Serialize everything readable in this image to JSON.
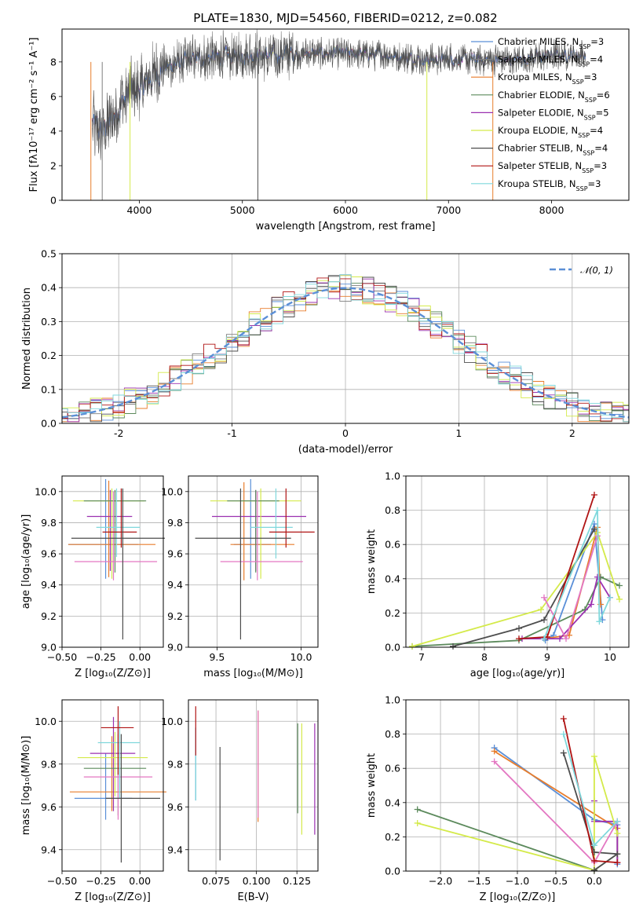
{
  "figure_title": "PLATE=1830, MJD=54560, FIBERID=0212, z=0.082",
  "chart_data": [
    {
      "id": "spectrum",
      "type": "line",
      "xlabel": "wavelength [Angstrom, rest frame]",
      "ylabel": "Flux [fλ10⁻¹⁷ erg cm⁻² s⁻¹ A⁻¹]",
      "xlim": [
        3250,
        8750
      ],
      "ylim": [
        0,
        9.9
      ],
      "xticks": [
        4000,
        5000,
        6000,
        7000,
        8000
      ],
      "yticks": [
        0,
        2,
        4,
        6,
        8
      ],
      "grid": false,
      "legend_position": "right",
      "series": [
        {
          "name": "Chabrier MILES, N_SSP=3",
          "color": "#5a8fd8"
        },
        {
          "name": "Salpeter MILES, N_SSP=4",
          "color": "#7f7f7f"
        },
        {
          "name": "Kroupa MILES, N_SSP=3",
          "color": "#e87d2c"
        },
        {
          "name": "Chabrier ELODIE, N_SSP=6",
          "color": "#5c8a5c"
        },
        {
          "name": "Salpeter ELODIE, N_SSP=5",
          "color": "#9b30b0"
        },
        {
          "name": "Kroupa ELODIE, N_SSP=4",
          "color": "#d4ea4a"
        },
        {
          "name": "Chabrier STELIB, N_SSP=4",
          "color": "#4d4d4d"
        },
        {
          "name": "Salpeter STELIB, N_SSP=3",
          "color": "#b01414"
        },
        {
          "name": "Kroupa STELIB, N_SSP=3",
          "color": "#7fd8dc"
        }
      ],
      "continuum_points": [
        {
          "x": 3550,
          "y": 4.3
        },
        {
          "x": 3620,
          "y": 4.0
        },
        {
          "x": 3700,
          "y": 4.4
        },
        {
          "x": 3800,
          "y": 5.3
        },
        {
          "x": 3900,
          "y": 6.3
        },
        {
          "x": 4000,
          "y": 6.4
        },
        {
          "x": 4100,
          "y": 7.0
        },
        {
          "x": 4200,
          "y": 7.6
        },
        {
          "x": 4400,
          "y": 8.0
        },
        {
          "x": 4600,
          "y": 8.2
        },
        {
          "x": 4800,
          "y": 8.3
        },
        {
          "x": 5000,
          "y": 8.4
        },
        {
          "x": 5300,
          "y": 8.4
        },
        {
          "x": 5600,
          "y": 8.5
        },
        {
          "x": 6000,
          "y": 8.5
        },
        {
          "x": 6400,
          "y": 8.4
        },
        {
          "x": 6800,
          "y": 8.1
        },
        {
          "x": 7000,
          "y": 8.2
        },
        {
          "x": 7300,
          "y": 8.1
        },
        {
          "x": 7600,
          "y": 8.1
        },
        {
          "x": 7800,
          "y": 8.2
        },
        {
          "x": 8000,
          "y": 8.4
        },
        {
          "x": 8300,
          "y": 8.4
        }
      ]
    },
    {
      "id": "residuals",
      "type": "line",
      "xlabel": "(data-model)/error",
      "ylabel": "Normed distribution",
      "xlim": [
        -2.5,
        2.5
      ],
      "ylim": [
        0,
        0.5
      ],
      "xticks": [
        -2,
        -1,
        0,
        1,
        2
      ],
      "ytick_labels": [
        "0.0",
        "0.1",
        "0.2",
        "0.3",
        "0.4",
        "0.5"
      ],
      "grid": true,
      "legend_position": "top-right",
      "legend_label": "𝒩(0, 1)",
      "gaussian_color": "#5b8fd6"
    },
    {
      "id": "age_vs_Z",
      "type": "scatter",
      "xlabel": "Z [log₁₀(Z/Z⊙)]",
      "ylabel": "age  [log₁₀(age/yr)]",
      "xlim": [
        -0.5,
        0.15
      ],
      "ylim": [
        9.0,
        10.1
      ],
      "xtick_labels": [
        "−0.50",
        "−0.25",
        "0.00"
      ],
      "ytick_labels": [
        "9.0",
        "9.2",
        "9.4",
        "9.6",
        "9.8",
        "10.0"
      ],
      "grid": true,
      "points": [
        {
          "x": -0.22,
          "xerr": [
            0.24,
            0.21
          ],
          "y": 9.66,
          "yerr": [
            0.22,
            0.42
          ],
          "color": "#5a8fd8"
        },
        {
          "x": -0.2,
          "xerr": [
            0.26,
            0.3
          ],
          "y": 9.66,
          "yerr": [
            0.21,
            0.41
          ],
          "color": "#e87d2c"
        },
        {
          "x": -0.19,
          "xerr": [
            0.15,
            0.14
          ],
          "y": 9.84,
          "yerr": [
            0.35,
            0.17
          ],
          "color": "#9b30b0"
        },
        {
          "x": -0.18,
          "xerr": [
            0.25,
            0.21
          ],
          "y": 9.94,
          "yerr": [
            0.5,
            0.08
          ],
          "color": "#d4ea4a"
        },
        {
          "x": -0.16,
          "xerr": [
            0.2,
            0.2
          ],
          "y": 9.94,
          "yerr": [
            0.46,
            0.07
          ],
          "color": "#5c8a5c"
        },
        {
          "x": -0.17,
          "xerr": [
            0.25,
            0.28
          ],
          "y": 9.55,
          "yerr": [
            0.12,
            0.45
          ],
          "color": "#e377c2"
        },
        {
          "x": -0.15,
          "xerr": [
            0.13,
            0.15
          ],
          "y": 9.77,
          "yerr": [
            0.19,
            0.25
          ],
          "color": "#7fd8dc"
        },
        {
          "x": -0.12,
          "xerr": [
            0.12,
            0.1
          ],
          "y": 9.74,
          "yerr": [
            0.1,
            0.28
          ],
          "color": "#b01414"
        },
        {
          "x": -0.11,
          "xerr": [
            0.33,
            0.27
          ],
          "y": 9.7,
          "yerr": [
            0.65,
            0.32
          ],
          "color": "#4d4d4d"
        }
      ]
    },
    {
      "id": "age_vs_mass",
      "type": "scatter",
      "xlabel": "mass [log₁₀(M/M⊙)]",
      "xlim": [
        9.33,
        10.1
      ],
      "ylim": [
        9.0,
        10.1
      ],
      "xtick_labels": [
        "9.5",
        "10.0"
      ],
      "ytick_labels": [
        "9.0",
        "9.2",
        "9.4",
        "9.6",
        "9.8",
        "10.0"
      ],
      "grid": true,
      "points": [
        {
          "x": 9.7,
          "xerr": [
            0.1,
            0.12
          ],
          "y": 9.66,
          "yerr": [
            0.22,
            0.42
          ],
          "color": "#5a8fd8"
        },
        {
          "x": 9.66,
          "xerr": [
            0.08,
            0.3
          ],
          "y": 9.66,
          "yerr": [
            0.23,
            0.4
          ],
          "color": "#e87d2c"
        },
        {
          "x": 9.73,
          "xerr": [
            0.26,
            0.3
          ],
          "y": 9.84,
          "yerr": [
            0.35,
            0.17
          ],
          "color": "#9b30b0"
        },
        {
          "x": 9.76,
          "xerr": [
            0.3,
            0.24
          ],
          "y": 9.94,
          "yerr": [
            0.5,
            0.08
          ],
          "color": "#d4ea4a"
        },
        {
          "x": 9.73,
          "xerr": [
            0.17,
            0.14
          ],
          "y": 9.94,
          "yerr": [
            0.46,
            0.07
          ],
          "color": "#5c8a5c"
        },
        {
          "x": 9.74,
          "xerr": [
            0.22,
            0.27
          ],
          "y": 9.55,
          "yerr": [
            0.12,
            0.45
          ],
          "color": "#e377c2"
        },
        {
          "x": 9.85,
          "xerr": [
            0.15,
            0.1
          ],
          "y": 9.77,
          "yerr": [
            0.2,
            0.25
          ],
          "color": "#7fd8dc"
        },
        {
          "x": 9.91,
          "xerr": [
            0.1,
            0.17
          ],
          "y": 9.74,
          "yerr": [
            0.1,
            0.28
          ],
          "color": "#b01414"
        },
        {
          "x": 9.64,
          "xerr": [
            0.27,
            0.3
          ],
          "y": 9.7,
          "yerr": [
            0.65,
            0.32
          ],
          "color": "#4d4d4d"
        }
      ]
    },
    {
      "id": "weight_vs_age",
      "type": "line",
      "xlabel": "age  [log₁₀(age/yr)]",
      "ylabel": "mass weight",
      "xlim": [
        6.75,
        10.3
      ],
      "ylim": [
        0,
        1.0
      ],
      "xticks": [
        7,
        8,
        9,
        10
      ],
      "ytick_labels": [
        "0.0",
        "0.2",
        "0.4",
        "0.6",
        "0.8",
        "1.0"
      ],
      "grid": true,
      "series": [
        {
          "color": "#5a8fd8",
          "points": [
            [
              8.97,
              0.04
            ],
            [
              9.1,
              0.07
            ],
            [
              9.75,
              0.72
            ],
            [
              9.88,
              0.16
            ]
          ]
        },
        {
          "color": "#e87d2c",
          "points": [
            [
              8.95,
              0.05
            ],
            [
              9.35,
              0.07
            ],
            [
              9.8,
              0.7
            ],
            [
              9.85,
              0.25
            ]
          ]
        },
        {
          "color": "#5c8a5c",
          "points": [
            [
              6.85,
              0.005
            ],
            [
              8.55,
              0.04
            ],
            [
              9.6,
              0.22
            ],
            [
              9.85,
              0.41
            ],
            [
              10.15,
              0.36
            ]
          ]
        },
        {
          "color": "#9b30b0",
          "points": [
            [
              8.6,
              0.05
            ],
            [
              9.2,
              0.05
            ],
            [
              9.7,
              0.25
            ],
            [
              9.8,
              0.41
            ],
            [
              10.0,
              0.29
            ]
          ]
        },
        {
          "color": "#d4ea4a",
          "points": [
            [
              6.85,
              0.005
            ],
            [
              8.9,
              0.22
            ],
            [
              9.8,
              0.67
            ],
            [
              10.15,
              0.28
            ]
          ]
        },
        {
          "color": "#4d4d4d",
          "points": [
            [
              7.5,
              0.005
            ],
            [
              8.55,
              0.11
            ],
            [
              8.95,
              0.16
            ],
            [
              9.75,
              0.69
            ]
          ]
        },
        {
          "color": "#e377c2",
          "points": [
            [
              8.95,
              0.29
            ],
            [
              9.3,
              0.05
            ],
            [
              9.8,
              0.65
            ]
          ]
        },
        {
          "color": "#b01414",
          "points": [
            [
              8.55,
              0.05
            ],
            [
              9.0,
              0.06
            ],
            [
              9.75,
              0.89
            ]
          ]
        },
        {
          "color": "#7fd8dc",
          "points": [
            [
              8.95,
              0.05
            ],
            [
              9.8,
              0.8
            ],
            [
              9.83,
              0.15
            ],
            [
              10.0,
              0.29
            ]
          ]
        }
      ]
    },
    {
      "id": "mass_vs_Z",
      "type": "scatter",
      "xlabel": "Z [log₁₀(Z/Z⊙)]",
      "ylabel": "mass [log₁₀(M/M⊙)]",
      "xlim": [
        -0.5,
        0.15
      ],
      "ylim": [
        9.3,
        10.1
      ],
      "xtick_labels": [
        "−0.50",
        "−0.25",
        "0.00"
      ],
      "ytick_labels": [
        "9.4",
        "9.6",
        "9.8",
        "10.0"
      ],
      "grid": true,
      "points": [
        {
          "x": -0.22,
          "xerr": [
            0.2,
            0.17
          ],
          "y": 9.64,
          "yerr": [
            0.1,
            0.21
          ],
          "color": "#5a8fd8"
        },
        {
          "x": -0.18,
          "xerr": [
            0.27,
            0.35
          ],
          "y": 9.67,
          "yerr": [
            0.09,
            0.26
          ],
          "color": "#e87d2c"
        },
        {
          "x": -0.17,
          "xerr": [
            0.15,
            0.14
          ],
          "y": 9.85,
          "yerr": [
            0.27,
            0.17
          ],
          "color": "#9b30b0"
        },
        {
          "x": -0.16,
          "xerr": [
            0.24,
            0.21
          ],
          "y": 9.83,
          "yerr": [
            0.18,
            0.12
          ],
          "color": "#d4ea4a"
        },
        {
          "x": -0.14,
          "xerr": [
            0.22,
            0.18
          ],
          "y": 9.78,
          "yerr": [
            0.22,
            0.16
          ],
          "color": "#5c8a5c"
        },
        {
          "x": -0.14,
          "xerr": [
            0.22,
            0.22
          ],
          "y": 9.74,
          "yerr": [
            0.2,
            0.24
          ],
          "color": "#e377c2"
        },
        {
          "x": -0.13,
          "xerr": [
            0.14,
            0.13
          ],
          "y": 9.9,
          "yerr": [
            0.26,
            0.1
          ],
          "color": "#7fd8dc"
        },
        {
          "x": -0.14,
          "xerr": [
            0.11,
            0.1
          ],
          "y": 9.97,
          "yerr": [
            0.22,
            0.1
          ],
          "color": "#b01414"
        },
        {
          "x": -0.12,
          "xerr": [
            0.1,
            0.25
          ],
          "y": 9.64,
          "yerr": [
            0.3,
            0.3
          ],
          "color": "#4d4d4d"
        }
      ]
    },
    {
      "id": "mass_vs_ebv",
      "type": "scatter",
      "xlabel": "E(B-V)",
      "xlim": [
        0.058,
        0.138
      ],
      "ylim": [
        9.3,
        10.1
      ],
      "xtick_labels": [
        "0.075",
        "0.100",
        "0.125"
      ],
      "ytick_labels": [
        "9.4",
        "9.6",
        "9.8",
        "10.0"
      ],
      "grid": true,
      "points": [
        {
          "x": 0.0625,
          "y": 9.85,
          "yerr": [
            0.22,
            0.12
          ],
          "color": "#5a8fd8"
        },
        {
          "x": 0.101,
          "y": 9.79,
          "yerr": [
            0.26,
            0.26
          ],
          "color": "#e87d2c"
        },
        {
          "x": 0.136,
          "y": 9.73,
          "yerr": [
            0.26,
            0.26
          ],
          "color": "#9b30b0"
        },
        {
          "x": 0.128,
          "y": 9.73,
          "yerr": [
            0.26,
            0.26
          ],
          "color": "#d4ea4a"
        },
        {
          "x": 0.1255,
          "y": 9.78,
          "yerr": [
            0.21,
            0.21
          ],
          "color": "#5c8a5c"
        },
        {
          "x": 0.101,
          "y": 9.8,
          "yerr": [
            0.25,
            0.25
          ],
          "color": "#e377c2"
        },
        {
          "x": 0.0625,
          "y": 9.8,
          "yerr": [
            0.17,
            0.17
          ],
          "color": "#7fd8dc"
        },
        {
          "x": 0.0625,
          "y": 9.96,
          "yerr": [
            0.12,
            0.11
          ],
          "color": "#b01414"
        },
        {
          "x": 0.0775,
          "y": 9.61,
          "yerr": [
            0.26,
            0.27
          ],
          "color": "#4d4d4d"
        }
      ]
    },
    {
      "id": "weight_vs_Z",
      "type": "line",
      "xlabel": "Z [log₁₀(Z/Z⊙)]",
      "ylabel": "mass weight",
      "xlim": [
        -2.45,
        0.45
      ],
      "ylim": [
        0,
        1.0
      ],
      "xticks": [
        -2.0,
        -1.5,
        -1.0,
        -0.5,
        0.0
      ],
      "xtick_labels": [
        "−2.0",
        "−1.5",
        "−1.0",
        "−0.5",
        "0.0"
      ],
      "ytick_labels": [
        "0.0",
        "0.2",
        "0.4",
        "0.6",
        "0.8",
        "1.0"
      ],
      "grid": true,
      "series": [
        {
          "color": "#5a8fd8",
          "points": [
            [
              -1.3,
              0.72
            ],
            [
              0.0,
              0.3
            ],
            [
              0.3,
              0.27
            ],
            [
              0.3,
              0.04
            ]
          ]
        },
        {
          "color": "#e87d2c",
          "points": [
            [
              -1.3,
              0.7
            ],
            [
              0.3,
              0.25
            ],
            [
              0.3,
              0.05
            ]
          ]
        },
        {
          "color": "#5c8a5c",
          "points": [
            [
              -2.3,
              0.36
            ],
            [
              0.0,
              0.005
            ],
            [
              0.3,
              0.1
            ]
          ]
        },
        {
          "color": "#9b30b0",
          "points": [
            [
              0.0,
              0.41
            ],
            [
              0.0,
              0.29
            ],
            [
              0.3,
              0.29
            ],
            [
              0.3,
              0.05
            ]
          ]
        },
        {
          "color": "#d4ea4a",
          "points": [
            [
              -2.3,
              0.28
            ],
            [
              0.0,
              0.005
            ],
            [
              0.0,
              0.67
            ],
            [
              0.3,
              0.22
            ]
          ]
        },
        {
          "color": "#4d4d4d",
          "points": [
            [
              -0.4,
              0.69
            ],
            [
              0.0,
              0.11
            ],
            [
              0.3,
              0.1
            ],
            [
              0.0,
              0.005
            ]
          ]
        },
        {
          "color": "#e377c2",
          "points": [
            [
              -1.3,
              0.64
            ],
            [
              0.0,
              0.05
            ],
            [
              0.3,
              0.29
            ]
          ]
        },
        {
          "color": "#b01414",
          "points": [
            [
              -0.4,
              0.89
            ],
            [
              0.0,
              0.06
            ],
            [
              0.3,
              0.05
            ]
          ]
        },
        {
          "color": "#7fd8dc",
          "points": [
            [
              -0.4,
              0.8
            ],
            [
              0.0,
              0.15
            ],
            [
              0.3,
              0.29
            ]
          ]
        }
      ]
    }
  ]
}
